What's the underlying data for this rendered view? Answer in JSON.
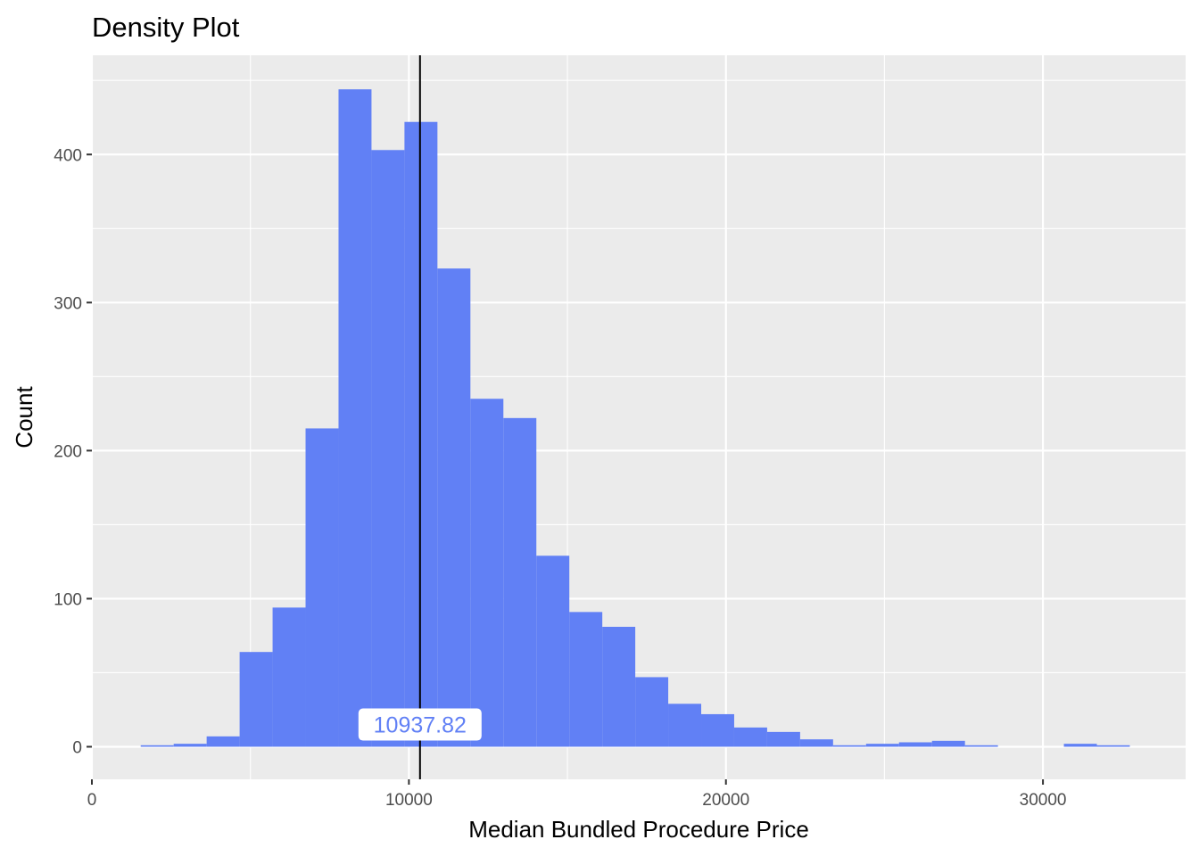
{
  "chart_data": {
    "type": "bar",
    "subtype": "histogram",
    "title": "Density Plot",
    "xlabel": "Median Bundled Procedure Price",
    "ylabel": "Count",
    "xlim": [
      0,
      34500
    ],
    "ylim": [
      -22,
      467
    ],
    "x_ticks": [
      0,
      10000,
      20000,
      30000
    ],
    "x_tick_labels": [
      "0",
      "10000",
      "20000",
      "30000"
    ],
    "y_ticks": [
      0,
      100,
      200,
      300,
      400
    ],
    "y_tick_labels": [
      "0",
      "100",
      "200",
      "300",
      "400"
    ],
    "grid": true,
    "bin_width": 1040,
    "bins": [
      {
        "x0": 1540,
        "x1": 2580,
        "count": 1
      },
      {
        "x0": 2580,
        "x1": 3620,
        "count": 2
      },
      {
        "x0": 3620,
        "x1": 4660,
        "count": 7
      },
      {
        "x0": 4660,
        "x1": 5700,
        "count": 64
      },
      {
        "x0": 5700,
        "x1": 6740,
        "count": 94
      },
      {
        "x0": 6740,
        "x1": 7780,
        "count": 215
      },
      {
        "x0": 7780,
        "x1": 8820,
        "count": 444
      },
      {
        "x0": 8820,
        "x1": 9860,
        "count": 403
      },
      {
        "x0": 9860,
        "x1": 10900,
        "count": 422
      },
      {
        "x0": 10900,
        "x1": 11940,
        "count": 323
      },
      {
        "x0": 11940,
        "x1": 12980,
        "count": 235
      },
      {
        "x0": 12980,
        "x1": 14020,
        "count": 222
      },
      {
        "x0": 14020,
        "x1": 15060,
        "count": 129
      },
      {
        "x0": 15060,
        "x1": 16100,
        "count": 91
      },
      {
        "x0": 16100,
        "x1": 17140,
        "count": 81
      },
      {
        "x0": 17140,
        "x1": 18180,
        "count": 47
      },
      {
        "x0": 18180,
        "x1": 19220,
        "count": 29
      },
      {
        "x0": 19220,
        "x1": 20260,
        "count": 22
      },
      {
        "x0": 20260,
        "x1": 21300,
        "count": 13
      },
      {
        "x0": 21300,
        "x1": 22340,
        "count": 10
      },
      {
        "x0": 22340,
        "x1": 23380,
        "count": 5
      },
      {
        "x0": 23380,
        "x1": 24420,
        "count": 1
      },
      {
        "x0": 24420,
        "x1": 25460,
        "count": 2
      },
      {
        "x0": 25460,
        "x1": 26500,
        "count": 3
      },
      {
        "x0": 26500,
        "x1": 27540,
        "count": 4
      },
      {
        "x0": 27540,
        "x1": 28580,
        "count": 1
      },
      {
        "x0": 28580,
        "x1": 29620,
        "count": 0
      },
      {
        "x0": 29620,
        "x1": 30660,
        "count": 0
      },
      {
        "x0": 30660,
        "x1": 31700,
        "count": 2
      },
      {
        "x0": 31700,
        "x1": 32740,
        "count": 1
      }
    ],
    "reference_line": {
      "x": 10350,
      "color": "#000000"
    },
    "annotation": {
      "text": "10937.82",
      "x": 10350,
      "y": 15
    }
  },
  "colors": {
    "bar": "#6180f5",
    "panel": "#ebebeb",
    "grid": "#ffffff",
    "tick_text": "#4d4d4d",
    "annotation_text": "#6180f5"
  }
}
